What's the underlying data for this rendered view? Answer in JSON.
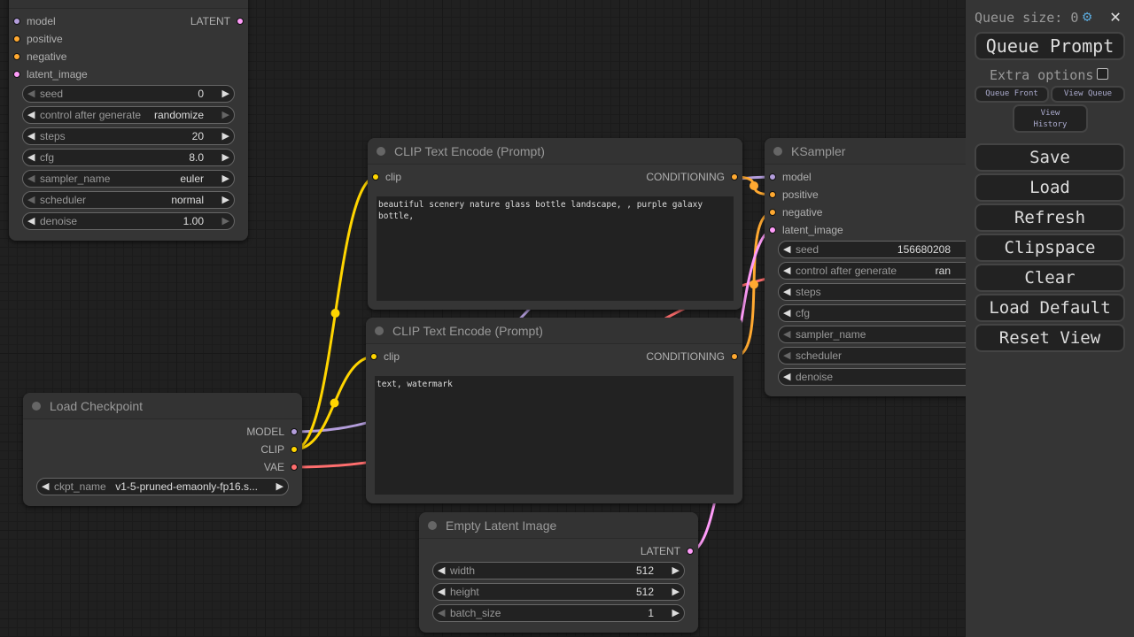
{
  "colors": {
    "model": "#b39ddb",
    "clip": "#ffd500",
    "vae": "#ff6e6e",
    "conditioning": "#ffa931",
    "latent": "#ff9cf9"
  },
  "nodes": {
    "ksampler_top": {
      "title": "",
      "inputs": [
        {
          "label": "model",
          "type": "model"
        },
        {
          "label": "positive",
          "type": "conditioning"
        },
        {
          "label": "negative",
          "type": "conditioning"
        },
        {
          "label": "latent_image",
          "type": "latent"
        }
      ],
      "outputs": [
        {
          "label": "LATENT",
          "type": "latent"
        }
      ],
      "widgets": [
        {
          "label": "seed",
          "value": "0",
          "left_enabled": false,
          "right_enabled": true
        },
        {
          "label": "control after generate",
          "value": "randomize",
          "left_enabled": true,
          "right_enabled": false
        },
        {
          "label": "steps",
          "value": "20",
          "left_enabled": true,
          "right_enabled": true
        },
        {
          "label": "cfg",
          "value": "8.0",
          "left_enabled": true,
          "right_enabled": true
        },
        {
          "label": "sampler_name",
          "value": "euler",
          "left_enabled": false,
          "right_enabled": true
        },
        {
          "label": "scheduler",
          "value": "normal",
          "left_enabled": false,
          "right_enabled": true
        },
        {
          "label": "denoise",
          "value": "1.00",
          "left_enabled": true,
          "right_enabled": false
        }
      ]
    },
    "clip_pos": {
      "title": "CLIP Text Encode (Prompt)",
      "inputs": [
        {
          "label": "clip",
          "type": "clip"
        }
      ],
      "outputs": [
        {
          "label": "CONDITIONING",
          "type": "conditioning"
        }
      ],
      "text": "beautiful scenery nature glass bottle landscape, , purple galaxy bottle,"
    },
    "clip_neg": {
      "title": "CLIP Text Encode (Prompt)",
      "inputs": [
        {
          "label": "clip",
          "type": "clip"
        }
      ],
      "outputs": [
        {
          "label": "CONDITIONING",
          "type": "conditioning"
        }
      ],
      "text": "text, watermark"
    },
    "checkpoint": {
      "title": "Load Checkpoint",
      "inputs": [],
      "outputs": [
        {
          "label": "MODEL",
          "type": "model"
        },
        {
          "label": "CLIP",
          "type": "clip"
        },
        {
          "label": "VAE",
          "type": "vae"
        }
      ],
      "widgets": [
        {
          "label": "ckpt_name",
          "value": "v1-5-pruned-emaonly-fp16.s...",
          "left_enabled": true,
          "right_enabled": true
        }
      ]
    },
    "latent": {
      "title": "Empty Latent Image",
      "inputs": [],
      "outputs": [
        {
          "label": "LATENT",
          "type": "latent"
        }
      ],
      "widgets": [
        {
          "label": "width",
          "value": "512",
          "left_enabled": true,
          "right_enabled": true
        },
        {
          "label": "height",
          "value": "512",
          "left_enabled": true,
          "right_enabled": true
        },
        {
          "label": "batch_size",
          "value": "1",
          "left_enabled": false,
          "right_enabled": true
        }
      ]
    },
    "ksampler": {
      "title": "KSampler",
      "inputs": [
        {
          "label": "model",
          "type": "model"
        },
        {
          "label": "positive",
          "type": "conditioning"
        },
        {
          "label": "negative",
          "type": "conditioning"
        },
        {
          "label": "latent_image",
          "type": "latent"
        }
      ],
      "outputs": [],
      "widgets": [
        {
          "label": "seed",
          "value": "156680208",
          "left_enabled": true,
          "right_enabled": true
        },
        {
          "label": "control after generate",
          "value": "ran",
          "left_enabled": true,
          "right_enabled": true
        },
        {
          "label": "steps",
          "value": "",
          "left_enabled": true,
          "right_enabled": true
        },
        {
          "label": "cfg",
          "value": "",
          "left_enabled": true,
          "right_enabled": true
        },
        {
          "label": "sampler_name",
          "value": "",
          "left_enabled": false,
          "right_enabled": true
        },
        {
          "label": "scheduler",
          "value": "",
          "left_enabled": false,
          "right_enabled": true
        },
        {
          "label": "denoise",
          "value": "",
          "left_enabled": true,
          "right_enabled": true
        }
      ]
    }
  },
  "panel": {
    "queue_size_label": "Queue size: 0",
    "settings_icon": "gear-icon",
    "close_icon": "close-icon",
    "queue_prompt": "Queue Prompt",
    "extra_options": "Extra options",
    "extra_options_checked": false,
    "queue_front": "Queue Front",
    "view_queue": "View Queue",
    "view_history": "View History",
    "buttons": [
      "Save",
      "Load",
      "Refresh",
      "Clipspace",
      "Clear",
      "Load Default",
      "Reset View"
    ]
  }
}
